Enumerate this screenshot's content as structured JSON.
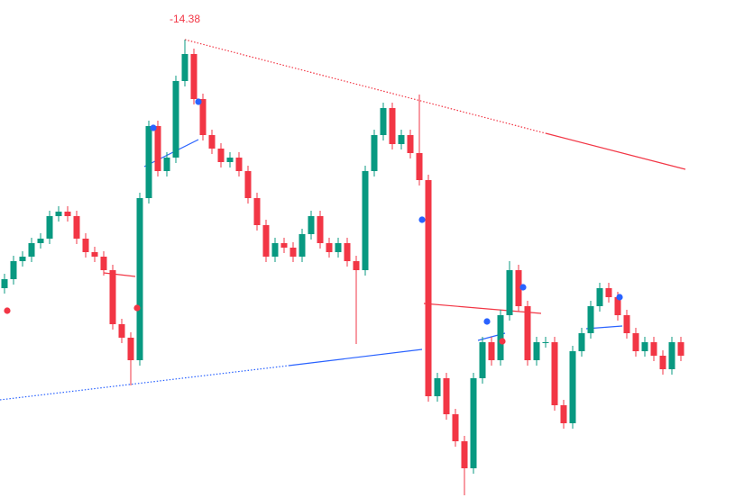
{
  "chart_data": {
    "type": "candlestick",
    "xlim": [
      -0.5,
      81
    ],
    "ylim": [
      0,
      553
    ],
    "up_color": "#089981",
    "down_color": "#f23645",
    "candles": {
      "open": [
        233,
        243,
        263,
        268,
        283,
        288,
        313,
        318,
        313,
        288,
        273,
        268,
        253,
        193,
        178,
        153,
        333,
        413,
        363,
        378,
        463,
        493,
        443,
        403,
        388,
        373,
        378,
        363,
        333,
        303,
        268,
        283,
        278,
        268,
        293,
        313,
        283,
        273,
        283,
        263,
        253,
        363,
        403,
        433,
        393,
        403,
        383,
        353,
        113,
        133,
        93,
        63,
        33,
        133,
        173,
        153,
        203,
        253,
        213,
        153,
        173,
        173,
        103,
        83,
        163,
        183,
        213,
        233,
        223,
        203,
        183,
        163,
        173,
        158,
        143,
        173
      ],
      "high": [
        249,
        269,
        274,
        289,
        294,
        319,
        324,
        324,
        319,
        294,
        279,
        274,
        259,
        199,
        184,
        339,
        419,
        419,
        384,
        469,
        509,
        499,
        449,
        409,
        394,
        384,
        384,
        369,
        339,
        309,
        289,
        289,
        284,
        299,
        319,
        319,
        289,
        289,
        289,
        269,
        369,
        409,
        439,
        439,
        409,
        409,
        448,
        359,
        139,
        139,
        99,
        69,
        139,
        179,
        179,
        209,
        263,
        259,
        219,
        179,
        179,
        179,
        109,
        169,
        189,
        219,
        239,
        239,
        229,
        209,
        189,
        179,
        179,
        164,
        179,
        179
      ],
      "low": [
        227,
        237,
        257,
        262,
        277,
        282,
        307,
        307,
        282,
        267,
        262,
        247,
        187,
        172,
        125,
        147,
        327,
        357,
        357,
        372,
        457,
        437,
        397,
        382,
        367,
        367,
        357,
        327,
        297,
        262,
        262,
        272,
        262,
        262,
        287,
        277,
        267,
        267,
        257,
        171,
        247,
        357,
        397,
        387,
        387,
        377,
        347,
        107,
        107,
        87,
        57,
        3,
        27,
        127,
        147,
        147,
        197,
        207,
        147,
        147,
        167,
        97,
        77,
        77,
        157,
        177,
        207,
        217,
        197,
        177,
        157,
        157,
        152,
        137,
        137,
        152
      ],
      "close": [
        243,
        263,
        268,
        283,
        288,
        313,
        318,
        313,
        288,
        273,
        268,
        253,
        193,
        178,
        153,
        333,
        413,
        363,
        378,
        463,
        493,
        443,
        403,
        388,
        373,
        378,
        363,
        333,
        303,
        268,
        283,
        278,
        268,
        293,
        313,
        283,
        273,
        283,
        263,
        253,
        363,
        403,
        433,
        393,
        403,
        383,
        353,
        113,
        133,
        93,
        63,
        33,
        133,
        173,
        153,
        203,
        253,
        213,
        153,
        173,
        173,
        103,
        83,
        163,
        183,
        213,
        233,
        223,
        203,
        183,
        163,
        173,
        158,
        143,
        173,
        158
      ]
    },
    "lines": [
      {
        "color": "#f23645",
        "dashed": true,
        "points": [
          [
            20,
            509
          ],
          [
            60,
            405
          ]
        ]
      },
      {
        "color": "#f23645",
        "dashed": false,
        "points": [
          [
            60,
            405
          ],
          [
            75.5,
            365
          ]
        ]
      },
      {
        "color": "#2962ff",
        "dashed": true,
        "points": [
          [
            -0.5,
            109
          ],
          [
            31.5,
            147
          ]
        ]
      },
      {
        "color": "#2962ff",
        "dashed": false,
        "points": [
          [
            31.5,
            147
          ],
          [
            46.3,
            165
          ]
        ]
      },
      {
        "color": "#f23645",
        "dashed": false,
        "points": [
          [
            11,
            250
          ],
          [
            14.5,
            246
          ]
        ]
      },
      {
        "color": "#2962ff",
        "dashed": false,
        "points": [
          [
            15.5,
            368
          ],
          [
            21.5,
            398
          ]
        ]
      },
      {
        "color": "#f23645",
        "dashed": false,
        "points": [
          [
            46.5,
            216
          ],
          [
            59.5,
            205
          ]
        ]
      },
      {
        "color": "#2962ff",
        "dashed": false,
        "points": [
          [
            52.5,
            175
          ],
          [
            55.5,
            183
          ]
        ]
      },
      {
        "color": "#2962ff",
        "dashed": false,
        "points": [
          [
            64.5,
            188
          ],
          [
            68.5,
            191
          ]
        ]
      }
    ],
    "markers": [
      {
        "color": "#f23645",
        "x": 0.3,
        "y": 208
      },
      {
        "color": "#f23645",
        "x": 14.7,
        "y": 211
      },
      {
        "color": "#f23645",
        "x": 55.2,
        "y": 174
      },
      {
        "color": "#2962ff",
        "x": 16.5,
        "y": 411
      },
      {
        "color": "#2962ff",
        "x": 21.5,
        "y": 440
      },
      {
        "color": "#2962ff",
        "x": 46.3,
        "y": 309
      },
      {
        "color": "#2962ff",
        "x": 53.5,
        "y": 196
      },
      {
        "color": "#2962ff",
        "x": 57.5,
        "y": 234
      },
      {
        "color": "#2962ff",
        "x": 68.2,
        "y": 223
      }
    ],
    "annotation": {
      "text": "-14.38",
      "x": 20,
      "y": 509,
      "color": "#f23645"
    }
  }
}
